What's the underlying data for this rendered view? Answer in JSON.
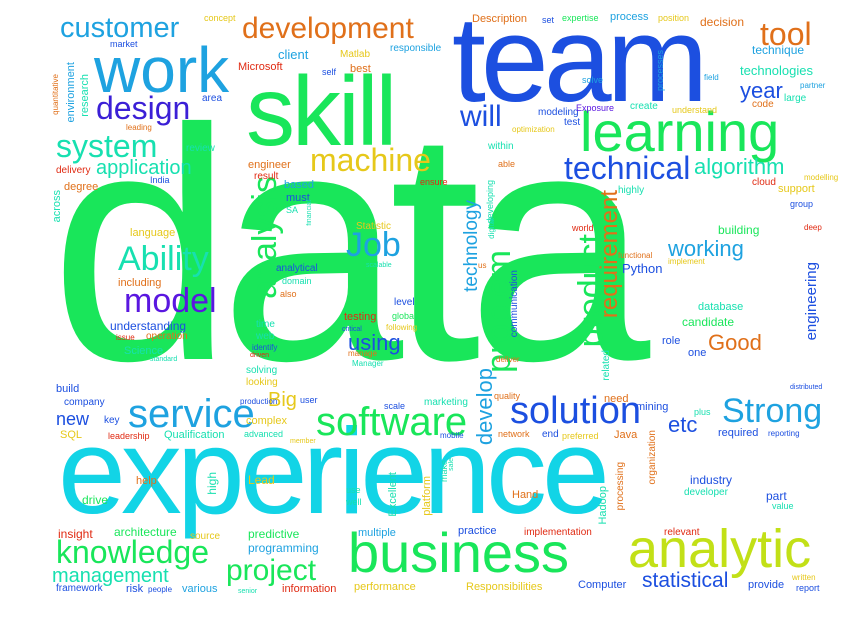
{
  "colors": {
    "green": "#19e65a",
    "cyan": "#12d4e6",
    "blue": "#1c4fe0",
    "indigo": "#3b1fd6",
    "sky": "#1ea2e0",
    "lime": "#c2e017",
    "orange": "#e0701a",
    "red": "#e02a12",
    "violet": "#5a17e0",
    "yellow": "#e6c81a",
    "teal": "#17e0b0"
  },
  "words": [
    {
      "text": "data",
      "color": "green"
    },
    {
      "text": "experience",
      "color": "cyan"
    },
    {
      "text": "team",
      "color": "blue"
    },
    {
      "text": "skill",
      "color": "green"
    },
    {
      "text": "work",
      "color": "sky"
    },
    {
      "text": "business",
      "color": "green"
    },
    {
      "text": "analytic",
      "color": "lime"
    },
    {
      "text": "learning",
      "color": "green"
    },
    {
      "text": "customer",
      "color": "sky"
    },
    {
      "text": "development",
      "color": "orange"
    },
    {
      "text": "tool",
      "color": "orange"
    },
    {
      "text": "design",
      "color": "indigo"
    },
    {
      "text": "system",
      "color": "teal"
    },
    {
      "text": "will",
      "color": "blue"
    },
    {
      "text": "machine",
      "color": "yellow"
    },
    {
      "text": "technical",
      "color": "blue"
    },
    {
      "text": "algorithm",
      "color": "teal"
    },
    {
      "text": "application",
      "color": "teal"
    },
    {
      "text": "Ability",
      "color": "teal"
    },
    {
      "text": "model",
      "color": "violet"
    },
    {
      "text": "analysis",
      "color": "green"
    },
    {
      "text": "Job",
      "color": "sky"
    },
    {
      "text": "problem",
      "color": "green"
    },
    {
      "text": "product",
      "color": "green"
    },
    {
      "text": "requirement",
      "color": "orange"
    },
    {
      "text": "service",
      "color": "sky"
    },
    {
      "text": "software",
      "color": "green"
    },
    {
      "text": "solution",
      "color": "blue"
    },
    {
      "text": "Strong",
      "color": "sky"
    },
    {
      "text": "knowledge",
      "color": "green"
    },
    {
      "text": "project",
      "color": "green"
    },
    {
      "text": "management",
      "color": "teal"
    },
    {
      "text": "statistical",
      "color": "blue"
    },
    {
      "text": "technology",
      "color": "sky"
    },
    {
      "text": "develop",
      "color": "sky"
    },
    {
      "text": "Good",
      "color": "orange"
    },
    {
      "text": "working",
      "color": "sky"
    },
    {
      "text": "year",
      "color": "blue"
    },
    {
      "text": "etc",
      "color": "blue"
    },
    {
      "text": "using",
      "color": "blue"
    },
    {
      "text": "Big",
      "color": "yellow"
    },
    {
      "text": "new",
      "color": "blue"
    },
    {
      "text": "engineering",
      "color": "blue"
    },
    {
      "text": "Python",
      "color": "blue"
    },
    {
      "text": "client",
      "color": "sky"
    },
    {
      "text": "technique",
      "color": "sky"
    },
    {
      "text": "technologies",
      "color": "teal"
    },
    {
      "text": "decision",
      "color": "orange"
    },
    {
      "text": "Description",
      "color": "orange"
    },
    {
      "text": "expertise",
      "color": "green"
    },
    {
      "text": "process",
      "color": "sky"
    },
    {
      "text": "position",
      "color": "yellow"
    },
    {
      "text": "concept",
      "color": "yellow"
    },
    {
      "text": "set",
      "color": "blue"
    },
    {
      "text": "market",
      "color": "blue"
    },
    {
      "text": "Microsoft",
      "color": "red"
    },
    {
      "text": "Matlab",
      "color": "yellow"
    },
    {
      "text": "best",
      "color": "orange"
    },
    {
      "text": "responsible",
      "color": "sky"
    },
    {
      "text": "self",
      "color": "blue"
    },
    {
      "text": "area",
      "color": "blue"
    },
    {
      "text": "modeling",
      "color": "blue"
    },
    {
      "text": "test",
      "color": "blue"
    },
    {
      "text": "Exposure",
      "color": "violet"
    },
    {
      "text": "create",
      "color": "teal"
    },
    {
      "text": "understand",
      "color": "yellow"
    },
    {
      "text": "code",
      "color": "orange"
    },
    {
      "text": "large",
      "color": "teal"
    },
    {
      "text": "partner",
      "color": "sky"
    },
    {
      "text": "field",
      "color": "sky"
    },
    {
      "text": "solve",
      "color": "sky"
    },
    {
      "text": "processes",
      "color": "sky"
    },
    {
      "text": "environment",
      "color": "sky"
    },
    {
      "text": "research",
      "color": "teal"
    },
    {
      "text": "quantitative",
      "color": "orange"
    },
    {
      "text": "leading",
      "color": "orange"
    },
    {
      "text": "review",
      "color": "teal"
    },
    {
      "text": "delivery",
      "color": "red"
    },
    {
      "text": "India",
      "color": "blue"
    },
    {
      "text": "degree",
      "color": "orange"
    },
    {
      "text": "across",
      "color": "teal"
    },
    {
      "text": "engineer",
      "color": "orange"
    },
    {
      "text": "result",
      "color": "red"
    },
    {
      "text": "based",
      "color": "sky"
    },
    {
      "text": "must",
      "color": "blue"
    },
    {
      "text": "SA",
      "color": "teal"
    },
    {
      "text": "financial",
      "color": "teal"
    },
    {
      "text": "ensure",
      "color": "red"
    },
    {
      "text": "within",
      "color": "teal"
    },
    {
      "text": "able",
      "color": "orange"
    },
    {
      "text": "optimization",
      "color": "yellow"
    },
    {
      "text": "highly",
      "color": "teal"
    },
    {
      "text": "cloud",
      "color": "red"
    },
    {
      "text": "support",
      "color": "yellow"
    },
    {
      "text": "modelling",
      "color": "yellow"
    },
    {
      "text": "group",
      "color": "blue"
    },
    {
      "text": "deep",
      "color": "red"
    },
    {
      "text": "building",
      "color": "green"
    },
    {
      "text": "functional",
      "color": "orange"
    },
    {
      "text": "implement",
      "color": "yellow"
    },
    {
      "text": "world",
      "color": "red"
    },
    {
      "text": "digital",
      "color": "teal"
    },
    {
      "text": "developing",
      "color": "teal"
    },
    {
      "text": "us",
      "color": "orange"
    },
    {
      "text": "Statistic",
      "color": "yellow"
    },
    {
      "text": "language",
      "color": "yellow"
    },
    {
      "text": "including",
      "color": "orange"
    },
    {
      "text": "understanding",
      "color": "blue"
    },
    {
      "text": "issue",
      "color": "red"
    },
    {
      "text": "operation",
      "color": "orange"
    },
    {
      "text": "Science",
      "color": "teal"
    },
    {
      "text": "standard",
      "color": "teal"
    },
    {
      "text": "analytical",
      "color": "blue"
    },
    {
      "text": "domain",
      "color": "teal"
    },
    {
      "text": "also",
      "color": "orange"
    },
    {
      "text": "scalable",
      "color": "teal"
    },
    {
      "text": "level",
      "color": "blue"
    },
    {
      "text": "testing",
      "color": "red"
    },
    {
      "text": "global",
      "color": "green"
    },
    {
      "text": "critical",
      "color": "blue"
    },
    {
      "text": "following",
      "color": "yellow"
    },
    {
      "text": "time",
      "color": "teal"
    },
    {
      "text": "web",
      "color": "teal"
    },
    {
      "text": "identify",
      "color": "blue"
    },
    {
      "text": "driven",
      "color": "red"
    },
    {
      "text": "manage",
      "color": "orange"
    },
    {
      "text": "Manager",
      "color": "teal"
    },
    {
      "text": "solving",
      "color": "teal"
    },
    {
      "text": "looking",
      "color": "yellow"
    },
    {
      "text": "communication",
      "color": "blue"
    },
    {
      "text": "deliver",
      "color": "orange"
    },
    {
      "text": "quality",
      "color": "orange"
    },
    {
      "text": "related",
      "color": "teal"
    },
    {
      "text": "need",
      "color": "orange"
    },
    {
      "text": "mining",
      "color": "blue"
    },
    {
      "text": "database",
      "color": "teal"
    },
    {
      "text": "candidate",
      "color": "green"
    },
    {
      "text": "role",
      "color": "blue"
    },
    {
      "text": "one",
      "color": "blue"
    },
    {
      "text": "distributed",
      "color": "blue"
    },
    {
      "text": "build",
      "color": "blue"
    },
    {
      "text": "company",
      "color": "blue"
    },
    {
      "text": "key",
      "color": "blue"
    },
    {
      "text": "SQL",
      "color": "yellow"
    },
    {
      "text": "leadership",
      "color": "red"
    },
    {
      "text": "Qualification",
      "color": "teal"
    },
    {
      "text": "production",
      "color": "blue"
    },
    {
      "text": "complex",
      "color": "yellow"
    },
    {
      "text": "advanced",
      "color": "teal"
    },
    {
      "text": "user",
      "color": "blue"
    },
    {
      "text": "member",
      "color": "yellow"
    },
    {
      "text": "scale",
      "color": "blue"
    },
    {
      "text": "marketing",
      "color": "teal"
    },
    {
      "text": "mobile",
      "color": "blue"
    },
    {
      "text": "network",
      "color": "orange"
    },
    {
      "text": "end",
      "color": "blue"
    },
    {
      "text": "preferred",
      "color": "yellow"
    },
    {
      "text": "Java",
      "color": "orange"
    },
    {
      "text": "organization",
      "color": "orange"
    },
    {
      "text": "plus",
      "color": "teal"
    },
    {
      "text": "required",
      "color": "blue"
    },
    {
      "text": "reporting",
      "color": "blue"
    },
    {
      "text": "help",
      "color": "orange"
    },
    {
      "text": "drive",
      "color": "green"
    },
    {
      "text": "high",
      "color": "teal"
    },
    {
      "text": "Lead",
      "color": "yellow"
    },
    {
      "text": "use",
      "color": "teal"
    },
    {
      "text": "well",
      "color": "teal"
    },
    {
      "text": "sale",
      "color": "teal"
    },
    {
      "text": "make",
      "color": "teal"
    },
    {
      "text": "Excellent",
      "color": "teal"
    },
    {
      "text": "platform",
      "color": "yellow"
    },
    {
      "text": "Hand",
      "color": "orange"
    },
    {
      "text": "Hadoop",
      "color": "teal"
    },
    {
      "text": "processing",
      "color": "orange"
    },
    {
      "text": "industry",
      "color": "blue"
    },
    {
      "text": "developer",
      "color": "teal"
    },
    {
      "text": "part",
      "color": "blue"
    },
    {
      "text": "value",
      "color": "teal"
    },
    {
      "text": "insight",
      "color": "red"
    },
    {
      "text": "architecture",
      "color": "green"
    },
    {
      "text": "source",
      "color": "yellow"
    },
    {
      "text": "predictive",
      "color": "green"
    },
    {
      "text": "programming",
      "color": "sky"
    },
    {
      "text": "multiple",
      "color": "sky"
    },
    {
      "text": "practice",
      "color": "blue"
    },
    {
      "text": "implementation",
      "color": "red"
    },
    {
      "text": "relevant",
      "color": "red"
    },
    {
      "text": "framework",
      "color": "blue"
    },
    {
      "text": "risk",
      "color": "blue"
    },
    {
      "text": "people",
      "color": "blue"
    },
    {
      "text": "various",
      "color": "sky"
    },
    {
      "text": "senior",
      "color": "teal"
    },
    {
      "text": "information",
      "color": "red"
    },
    {
      "text": "performance",
      "color": "yellow"
    },
    {
      "text": "Responsibilities",
      "color": "yellow"
    },
    {
      "text": "Computer",
      "color": "blue"
    },
    {
      "text": "provide",
      "color": "blue"
    },
    {
      "text": "written",
      "color": "yellow"
    },
    {
      "text": "report",
      "color": "blue"
    }
  ]
}
